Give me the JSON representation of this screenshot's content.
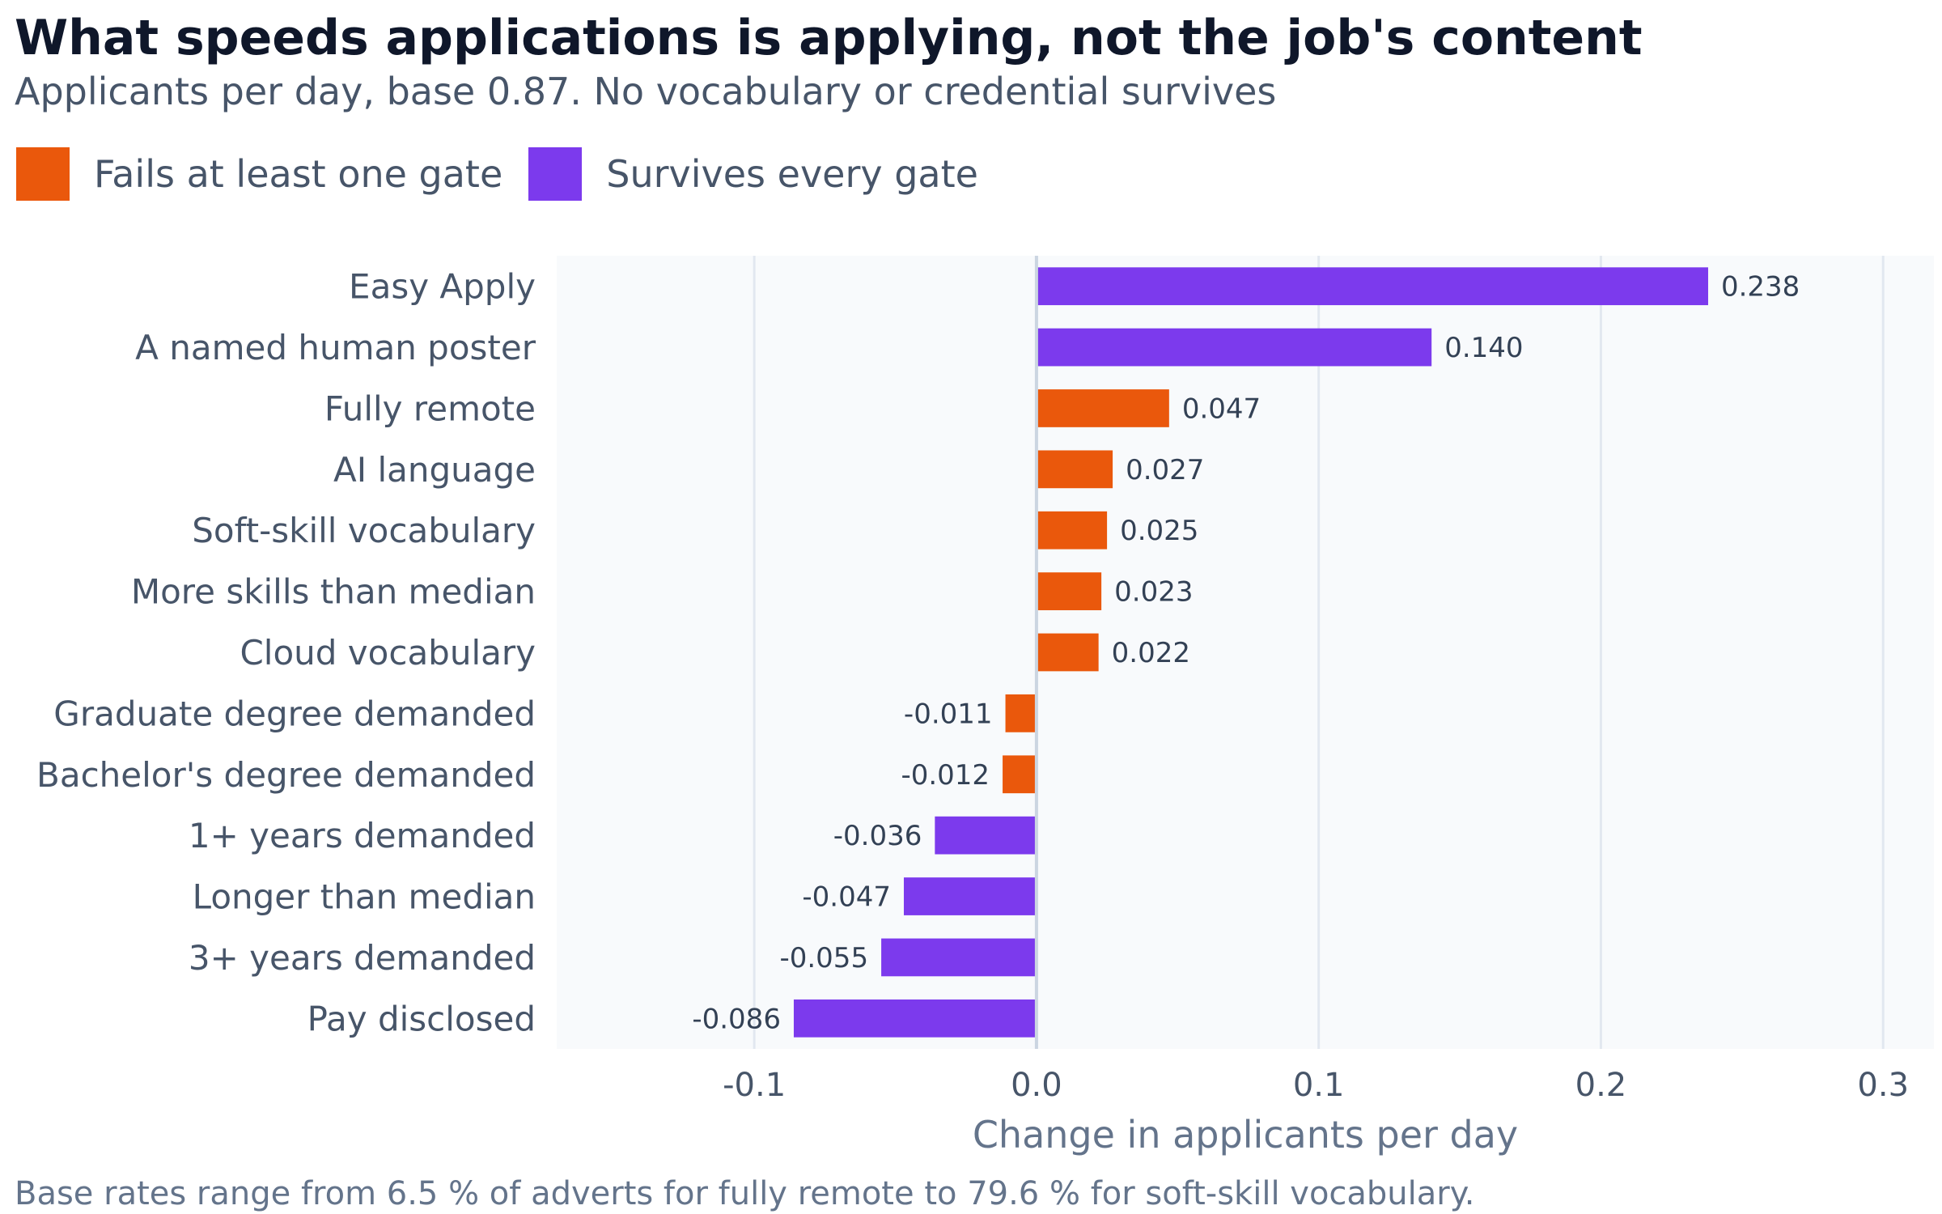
{
  "chart_data": {
    "type": "bar",
    "orientation": "horizontal",
    "title": "What speeds applications is applying, not the job's content",
    "subtitle": "Applicants per day, base 0.87. No vocabulary or credential survives",
    "xlabel": "Change in applicants per day",
    "ylabel": "",
    "xlim": [
      -0.17,
      0.318
    ],
    "xticks": [
      -0.1,
      0.0,
      0.1,
      0.2,
      0.3
    ],
    "xtick_labels": [
      "-0.1",
      "0.0",
      "0.1",
      "0.2",
      "0.3"
    ],
    "grid": "vertical",
    "legend_placement": "top-left",
    "legend": [
      {
        "key": "fails",
        "label": "Fails at least one gate",
        "color": "#ea580c"
      },
      {
        "key": "survives",
        "label": "Survives every gate",
        "color": "#7c3aed"
      }
    ],
    "bars": [
      {
        "label": "Easy Apply",
        "value": 0.238,
        "value_label": "0.238",
        "group": "survives"
      },
      {
        "label": "A named human poster",
        "value": 0.14,
        "value_label": "0.140",
        "group": "survives"
      },
      {
        "label": "Fully remote",
        "value": 0.047,
        "value_label": "0.047",
        "group": "fails"
      },
      {
        "label": "AI language",
        "value": 0.027,
        "value_label": "0.027",
        "group": "fails"
      },
      {
        "label": "Soft-skill vocabulary",
        "value": 0.025,
        "value_label": "0.025",
        "group": "fails"
      },
      {
        "label": "More skills than median",
        "value": 0.023,
        "value_label": "0.023",
        "group": "fails"
      },
      {
        "label": "Cloud vocabulary",
        "value": 0.022,
        "value_label": "0.022",
        "group": "fails"
      },
      {
        "label": "Graduate degree demanded",
        "value": -0.011,
        "value_label": "-0.011",
        "group": "fails"
      },
      {
        "label": "Bachelor's degree demanded",
        "value": -0.012,
        "value_label": "-0.012",
        "group": "fails"
      },
      {
        "label": "1+ years demanded",
        "value": -0.036,
        "value_label": "-0.036",
        "group": "survives"
      },
      {
        "label": "Longer than median",
        "value": -0.047,
        "value_label": "-0.047",
        "group": "survives"
      },
      {
        "label": "3+ years demanded",
        "value": -0.055,
        "value_label": "-0.055",
        "group": "survives"
      },
      {
        "label": "Pay disclosed",
        "value": -0.086,
        "value_label": "-0.086",
        "group": "survives"
      }
    ],
    "footnote": "Base rates range from 6.5 % of adverts for fully remote to 79.6 % for soft-skill vocabulary.",
    "colors": {
      "plot_background": "#f8fafc",
      "grid": "#e2e8f0",
      "zero_line": "#cbd5e1"
    }
  }
}
